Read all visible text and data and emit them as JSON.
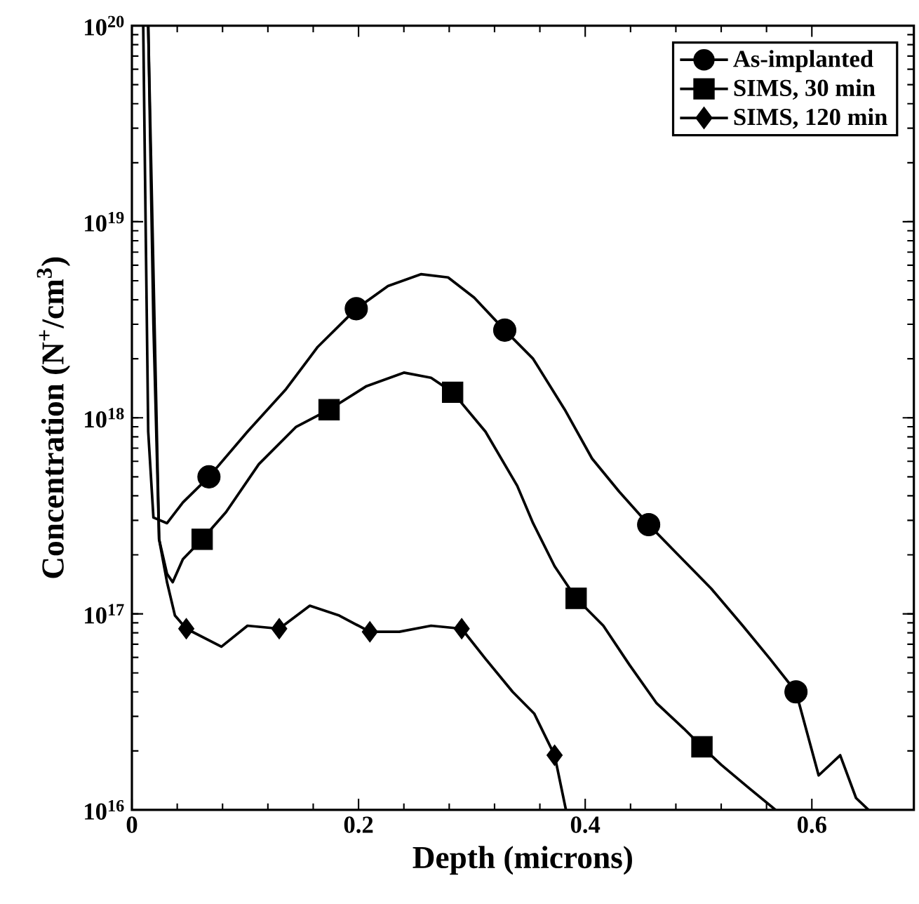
{
  "chart_data": {
    "type": "line",
    "xlabel": "Depth (microns)",
    "ylabel": "Concentration (N$^{+}$/cm$^{3}$)",
    "xlim": [
      0,
      0.69
    ],
    "xticks": [
      0,
      0.2,
      0.4,
      0.6
    ],
    "ylim": [
      1e+16,
      1e+20
    ],
    "yticks": [
      {
        "value": 1e+16,
        "label": "10$^{16}$"
      },
      {
        "value": 1e+17,
        "label": "10$^{17}$"
      },
      {
        "value": 1e+18,
        "label": "10$^{18}$"
      },
      {
        "value": 1e+19,
        "label": "10$^{19}$"
      },
      {
        "value": 1e+20,
        "label": "10$^{20}$"
      }
    ],
    "log": "y",
    "grid": false,
    "legend": "top right",
    "series": [
      {
        "color": "#000000",
        "line_style": "solid",
        "marker": "none",
        "x": [
          0.01,
          0.012,
          0.0144,
          0.019,
          0.031,
          0.045,
          0.068,
          0.102,
          0.136,
          0.164,
          0.198,
          0.226,
          0.255,
          0.279,
          0.302,
          0.329,
          0.354,
          0.382,
          0.406,
          0.43,
          0.456,
          0.482,
          0.511,
          0.539,
          0.563,
          0.586,
          0.606,
          0.625,
          0.639,
          0.65
        ],
        "values": [
          1e+20,
          1.1e+19,
          8.5e+17,
          3.1e+17,
          2.9e+17,
          3.7e+17,
          5e+17,
          8.5e+17,
          1.4e+18,
          2.3e+18,
          3.6e+18,
          4.7e+18,
          5.4e+18,
          5.2e+18,
          4.1e+18,
          2.8e+18,
          2e+18,
          1.1e+18,
          6.2e+17,
          4.2e+17,
          2.85e+17,
          2e+17,
          1.35e+17,
          8.7e+16,
          5.9e+16,
          4e+16,
          1.5e+16,
          1.9e+16,
          1.15e+16,
          1e+16
        ]
      },
      {
        "type": "line",
        "color": "#000000",
        "line_style": "solid",
        "marker": "none",
        "x": [
          0.0144,
          0.019,
          0.024,
          0.031,
          0.036,
          0.045,
          0.062,
          0.083,
          0.112,
          0.145,
          0.174,
          0.207,
          0.24,
          0.264,
          0.283,
          0.312,
          0.34,
          0.354,
          0.373,
          0.392,
          0.416,
          0.439,
          0.463,
          0.487,
          0.503,
          0.52,
          0.544,
          0.568
        ],
        "values": [
          1e+20,
          3e+18,
          2.4e+17,
          1.6e+17,
          1.45e+17,
          1.9e+17,
          2.4e+17,
          3.3e+17,
          5.8e+17,
          9e+17,
          1.1e+18,
          1.45e+18,
          1.7e+18,
          1.6e+18,
          1.35e+18,
          8.5e+17,
          4.5e+17,
          2.9e+17,
          1.75e+17,
          1.2e+17,
          8.7e+16,
          5.5e+16,
          3.5e+16,
          2.6e+16,
          2.1e+16,
          1.7e+16,
          1.3e+16,
          1e+16
        ]
      },
      {
        "type": "line",
        "color": "#000000",
        "line_style": "solid",
        "marker": "none",
        "x": [
          0.0144,
          0.024,
          0.031,
          0.038,
          0.048,
          0.079,
          0.102,
          0.13,
          0.157,
          0.183,
          0.21,
          0.236,
          0.264,
          0.291,
          0.312,
          0.336,
          0.355,
          0.373,
          0.383
        ],
        "values": [
          1e+20,
          2.4e+17,
          1.45e+17,
          9.8e+16,
          8.4e+16,
          6.8e+16,
          8.7e+16,
          8.4e+16,
          1.1e+17,
          9.8e+16,
          8.1e+16,
          8.1e+16,
          8.7e+16,
          8.4e+16,
          5.9e+16,
          4e+16,
          3.1e+16,
          1.9e+16,
          1e+16
        ]
      },
      {
        "type": "scatter",
        "name": "As-implanted",
        "color": "#000000",
        "marker": "circle",
        "x": [
          0.068,
          0.198,
          0.329,
          0.456,
          0.586
        ],
        "values": [
          5e+17,
          3.6e+18,
          2.8e+18,
          2.85e+17,
          4e+16
        ]
      },
      {
        "type": "scatter",
        "name": "SIMS, 30 min",
        "color": "#000000",
        "marker": "square",
        "x": [
          0.062,
          0.174,
          0.283,
          0.392,
          0.503
        ],
        "values": [
          2.4e+17,
          1.1e+18,
          1.35e+18,
          1.2e+17,
          2.1e+16
        ]
      },
      {
        "type": "scatter",
        "name": "SIMS, 120 min",
        "color": "#000000",
        "marker": "diamond",
        "x": [
          0.048,
          0.13,
          0.21,
          0.291,
          0.373
        ],
        "values": [
          8.4e+16,
          8.4e+16,
          8.1e+16,
          8.4e+16,
          1.9e+16
        ]
      }
    ]
  }
}
